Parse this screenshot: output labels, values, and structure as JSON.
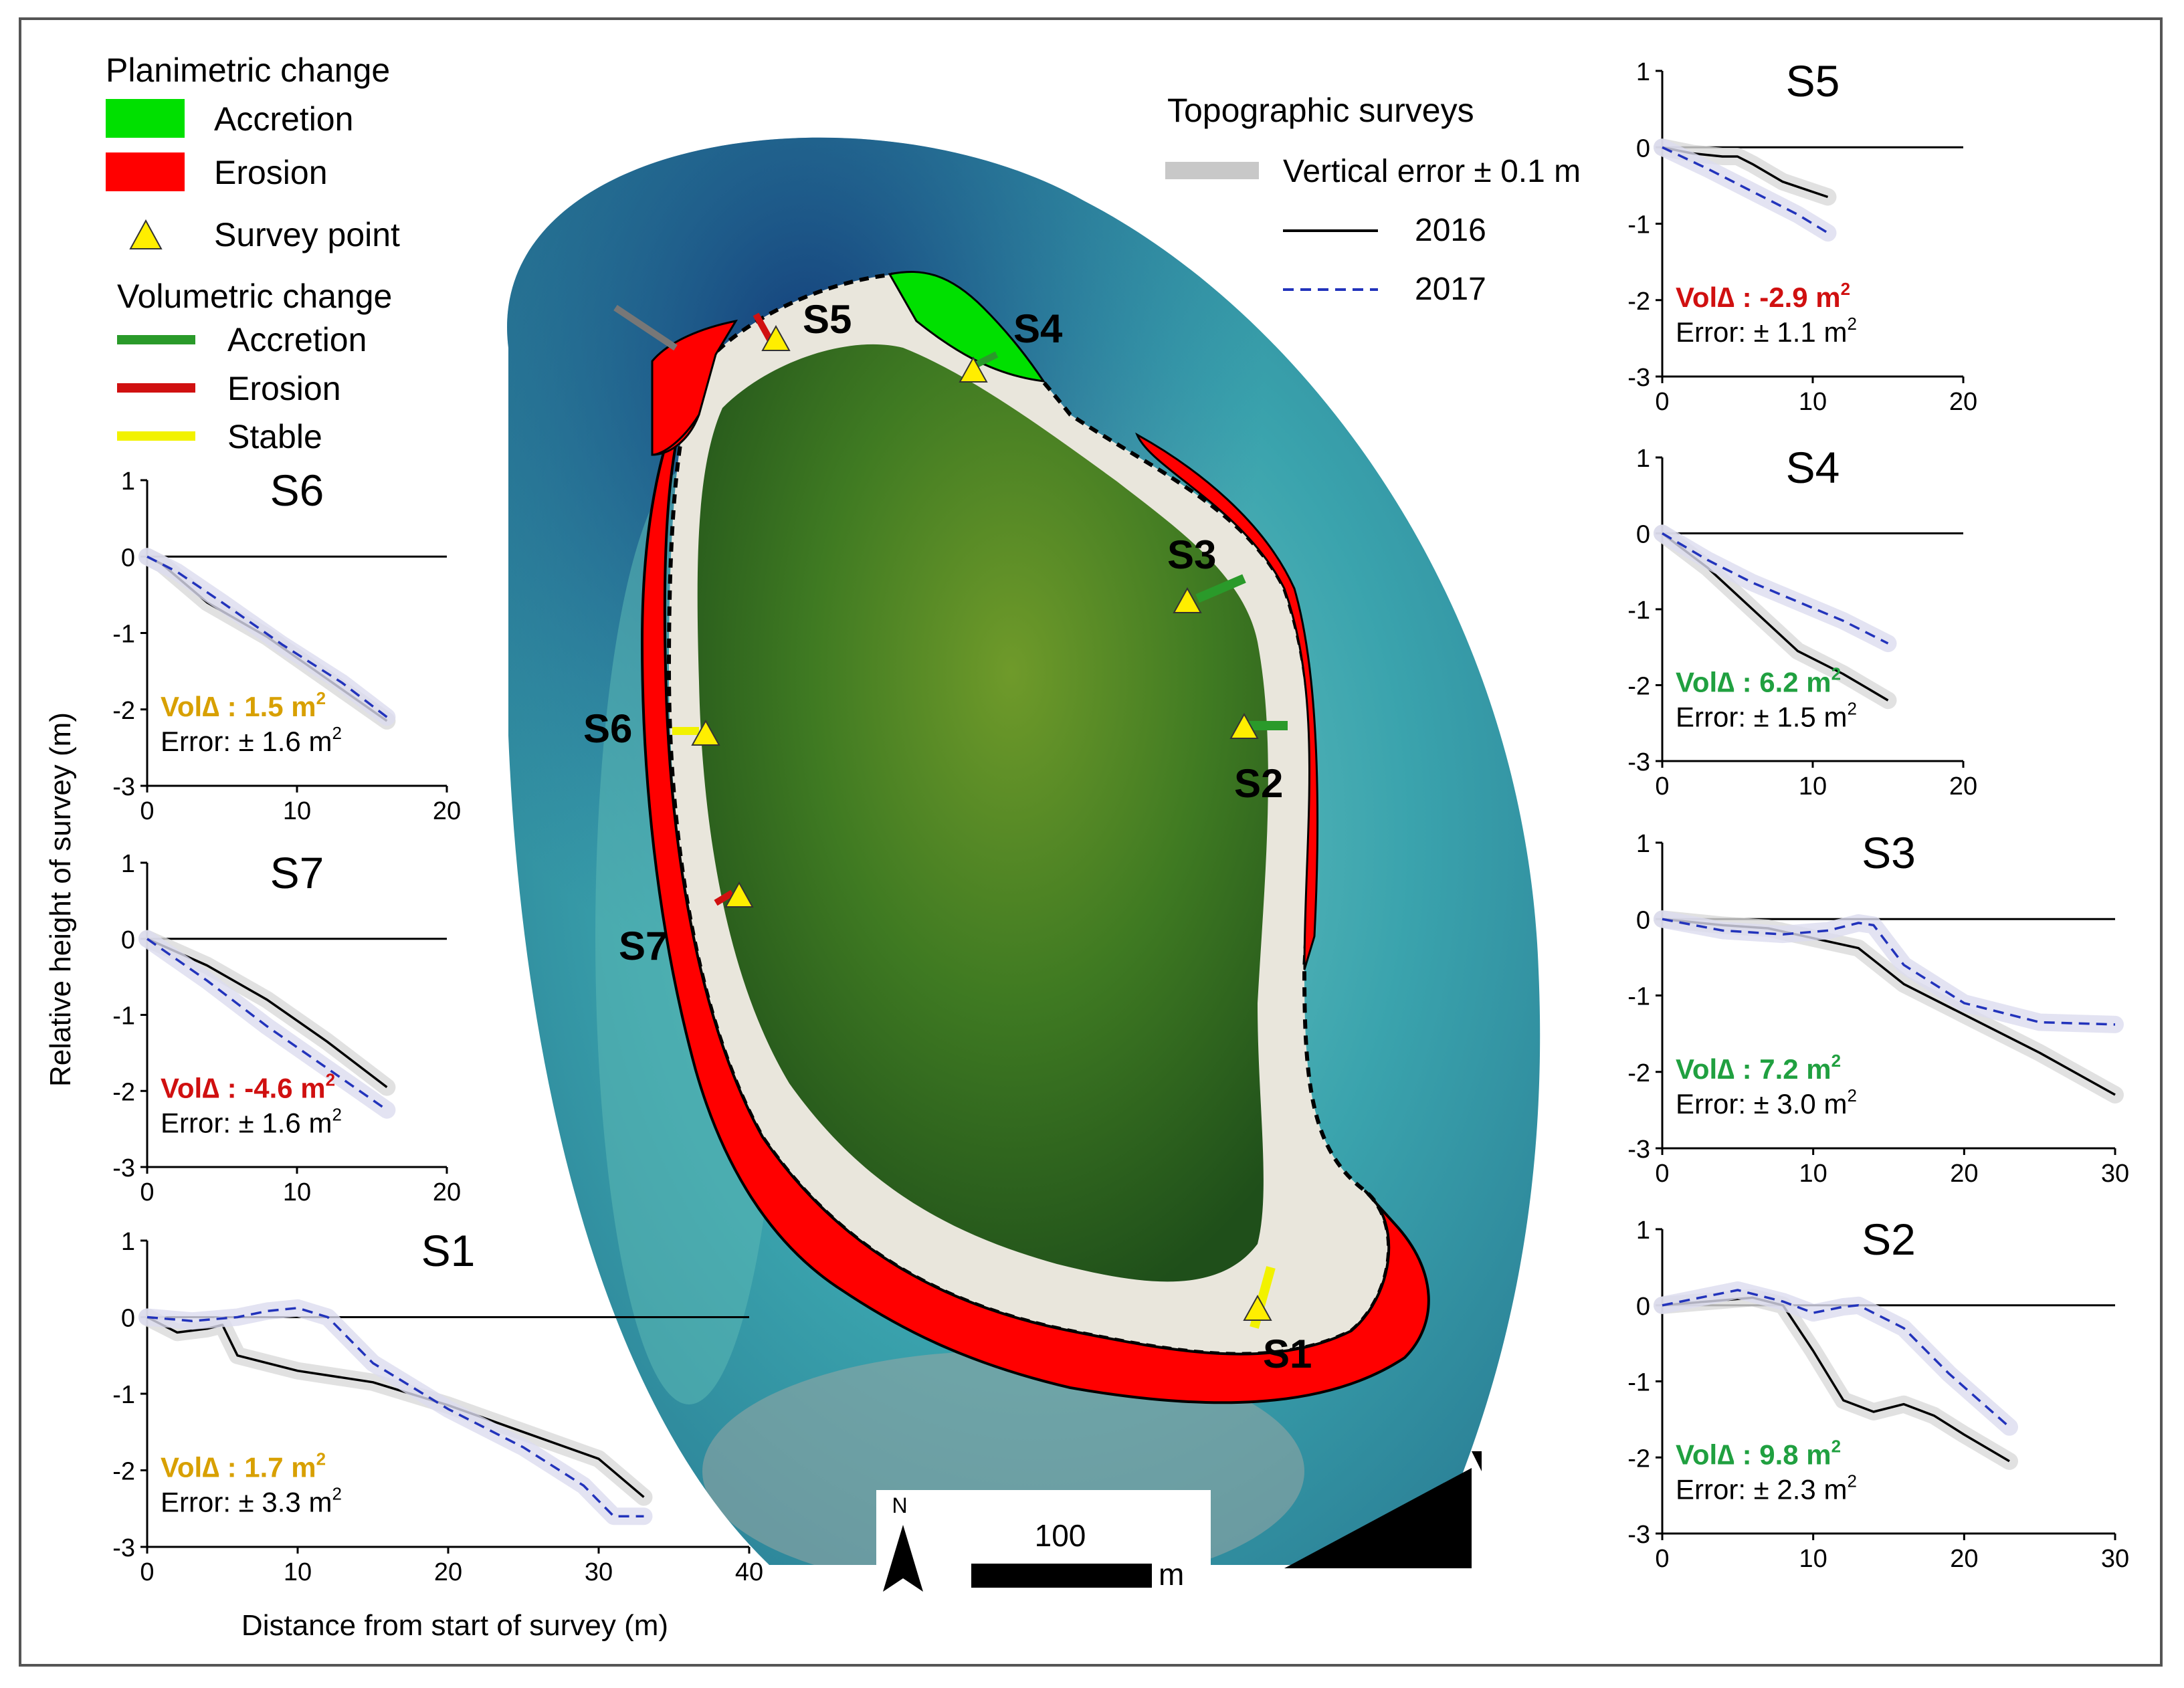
{
  "legend": {
    "planimetric_title": "Planimetric change",
    "accretion_label": "Accretion",
    "erosion_label": "Erosion",
    "survey_point_label": "Survey point",
    "volumetric_title": "Volumetric change",
    "vol_accretion_label": "Accretion",
    "vol_erosion_label": "Erosion",
    "vol_stable_label": "Stable",
    "colors": {
      "accretion": "#00e000",
      "erosion": "#ff0000",
      "survey_point": "#ffee00",
      "vol_accretion": "#2a9a2a",
      "vol_erosion": "#d01010",
      "vol_stable": "#f2f200"
    }
  },
  "topo_legend": {
    "title": "Topographic surveys",
    "error_label": "Vertical error ± 0.1 m",
    "series_2016": "2016",
    "series_2017": "2017",
    "colors": {
      "s2016": "#000000",
      "s2017": "#2233bb",
      "error_band": "#c8c8c8"
    }
  },
  "map": {
    "site_labels": [
      "S1",
      "S2",
      "S3",
      "S4",
      "S5",
      "S6",
      "S7"
    ],
    "north_label": "N",
    "scale_value": "100",
    "scale_unit": "m"
  },
  "axes_common": {
    "ylabel": "Relative height of survey (m)",
    "xlabel": "Distance from start of survey (m)"
  },
  "chart_data": [
    {
      "id": "S5",
      "type": "line",
      "title": "S5",
      "xlim": [
        0,
        20
      ],
      "ylim": [
        -3,
        1
      ],
      "xticks": [
        0,
        10,
        20
      ],
      "yticks": [
        1,
        0,
        -1,
        -2,
        -3
      ],
      "vol_text": "Vol∆ : -2.9 m",
      "vol_sup": "2",
      "vol_color": "#d01010",
      "err_text": "Error: ± 1.1 m",
      "err_sup": "2",
      "series": [
        {
          "name": "2016",
          "x": [
            0,
            2,
            4,
            5,
            6,
            8,
            11
          ],
          "y": [
            0,
            -0.08,
            -0.12,
            -0.12,
            -0.22,
            -0.45,
            -0.65
          ]
        },
        {
          "name": "2017",
          "x": [
            0,
            3,
            6,
            9,
            11
          ],
          "y": [
            0,
            -0.28,
            -0.58,
            -0.88,
            -1.12
          ]
        }
      ]
    },
    {
      "id": "S4",
      "type": "line",
      "title": "S4",
      "xlim": [
        0,
        20
      ],
      "ylim": [
        -3,
        1
      ],
      "xticks": [
        0,
        10,
        20
      ],
      "yticks": [
        1,
        0,
        -1,
        -2,
        -3
      ],
      "vol_text": "Vol∆ : 6.2 m",
      "vol_sup": "2",
      "vol_color": "#20a040",
      "err_text": "Error: ± 1.5 m",
      "err_sup": "2",
      "series": [
        {
          "name": "2016",
          "x": [
            0,
            3,
            6,
            9,
            12,
            15
          ],
          "y": [
            0,
            -0.45,
            -1.0,
            -1.55,
            -1.85,
            -2.2
          ]
        },
        {
          "name": "2017",
          "x": [
            0,
            3,
            6,
            9,
            12,
            15
          ],
          "y": [
            0,
            -0.35,
            -0.65,
            -0.9,
            -1.15,
            -1.45
          ]
        }
      ]
    },
    {
      "id": "S3",
      "type": "line",
      "title": "S3",
      "xlim": [
        0,
        30
      ],
      "ylim": [
        -3,
        1
      ],
      "xticks": [
        0,
        10,
        20,
        30
      ],
      "yticks": [
        1,
        0,
        -1,
        -2,
        -3
      ],
      "vol_text": "Vol∆ : 7.2 m",
      "vol_sup": "2",
      "vol_color": "#20a040",
      "err_text": "Error: ± 3.0 m",
      "err_sup": "2",
      "series": [
        {
          "name": "2016",
          "x": [
            0,
            4,
            7,
            10,
            13,
            16,
            20,
            25,
            30
          ],
          "y": [
            0,
            -0.08,
            -0.12,
            -0.25,
            -0.38,
            -0.85,
            -1.25,
            -1.75,
            -2.3
          ]
        },
        {
          "name": "2017",
          "x": [
            0,
            4,
            8,
            11,
            13,
            14,
            16,
            20,
            25,
            30
          ],
          "y": [
            0,
            -0.15,
            -0.2,
            -0.15,
            -0.05,
            -0.08,
            -0.6,
            -1.1,
            -1.35,
            -1.38
          ]
        }
      ]
    },
    {
      "id": "S2",
      "type": "line",
      "title": "S2",
      "xlim": [
        0,
        30
      ],
      "ylim": [
        -3,
        1
      ],
      "xticks": [
        0,
        10,
        20,
        30
      ],
      "yticks": [
        1,
        0,
        -1,
        -2,
        -3
      ],
      "vol_text": "Vol∆ : 9.8 m",
      "vol_sup": "2",
      "vol_color": "#20a040",
      "err_text": "Error: ± 2.3 m",
      "err_sup": "2",
      "series": [
        {
          "name": "2016",
          "x": [
            0,
            3,
            6,
            8,
            10,
            12,
            14,
            16,
            18,
            20,
            23
          ],
          "y": [
            0,
            0.05,
            0.1,
            0,
            -0.6,
            -1.25,
            -1.4,
            -1.3,
            -1.45,
            -1.7,
            -2.05
          ]
        },
        {
          "name": "2017",
          "x": [
            0,
            3,
            5,
            8,
            10,
            12,
            13,
            16,
            19,
            23
          ],
          "y": [
            0,
            0.12,
            0.2,
            0.05,
            -0.1,
            -0.02,
            0,
            -0.3,
            -0.9,
            -1.6
          ]
        }
      ]
    },
    {
      "id": "S6",
      "type": "line",
      "title": "S6",
      "xlim": [
        0,
        20
      ],
      "ylim": [
        -3,
        1
      ],
      "xticks": [
        0,
        10,
        20
      ],
      "yticks": [
        1,
        0,
        -1,
        -2,
        -3
      ],
      "vol_text": "Vol∆ : 1.5 m",
      "vol_sup": "2",
      "vol_color": "#d8a000",
      "err_text": "Error: ± 1.6 m",
      "err_sup": "2",
      "series": [
        {
          "name": "2016",
          "x": [
            0,
            1,
            4,
            8,
            12,
            16
          ],
          "y": [
            0,
            -0.1,
            -0.6,
            -1.05,
            -1.6,
            -2.15
          ]
        },
        {
          "name": "2017",
          "x": [
            0,
            2,
            5,
            9,
            13,
            16
          ],
          "y": [
            0,
            -0.2,
            -0.6,
            -1.15,
            -1.65,
            -2.1
          ]
        }
      ]
    },
    {
      "id": "S7",
      "type": "line",
      "title": "S7",
      "xlim": [
        0,
        20
      ],
      "ylim": [
        -3,
        1
      ],
      "xticks": [
        0,
        10,
        20
      ],
      "yticks": [
        1,
        0,
        -1,
        -2,
        -3
      ],
      "vol_text": "Vol∆ : -4.6 m",
      "vol_sup": "2",
      "vol_color": "#d01010",
      "err_text": "Error: ± 1.6 m",
      "err_sup": "2",
      "series": [
        {
          "name": "2016",
          "x": [
            0,
            4,
            8,
            12,
            16
          ],
          "y": [
            0,
            -0.35,
            -0.8,
            -1.35,
            -1.95
          ]
        },
        {
          "name": "2017",
          "x": [
            0,
            4,
            8,
            12,
            16
          ],
          "y": [
            0,
            -0.55,
            -1.15,
            -1.7,
            -2.25
          ]
        }
      ]
    },
    {
      "id": "S1",
      "type": "line",
      "title": "S1",
      "xlim": [
        0,
        40
      ],
      "ylim": [
        -3,
        1
      ],
      "xticks": [
        0,
        10,
        20,
        30,
        40
      ],
      "yticks": [
        1,
        0,
        -1,
        -2,
        -3
      ],
      "vol_text": "Vol∆ : 1.7 m",
      "vol_sup": "2",
      "vol_color": "#d8a000",
      "err_text": "Error: ± 3.3 m",
      "err_sup": "2",
      "series": [
        {
          "name": "2016",
          "x": [
            0,
            2,
            4,
            5,
            6,
            10,
            15,
            20,
            25,
            30,
            33
          ],
          "y": [
            0,
            -0.2,
            -0.15,
            -0.1,
            -0.5,
            -0.7,
            -0.85,
            -1.15,
            -1.5,
            -1.85,
            -2.35
          ]
        },
        {
          "name": "2017",
          "x": [
            0,
            3,
            6,
            8,
            10,
            12,
            15,
            20,
            25,
            29,
            31,
            33
          ],
          "y": [
            0,
            -0.05,
            0,
            0.08,
            0.12,
            0,
            -0.6,
            -1.2,
            -1.7,
            -2.2,
            -2.6,
            -2.6
          ]
        }
      ]
    }
  ]
}
